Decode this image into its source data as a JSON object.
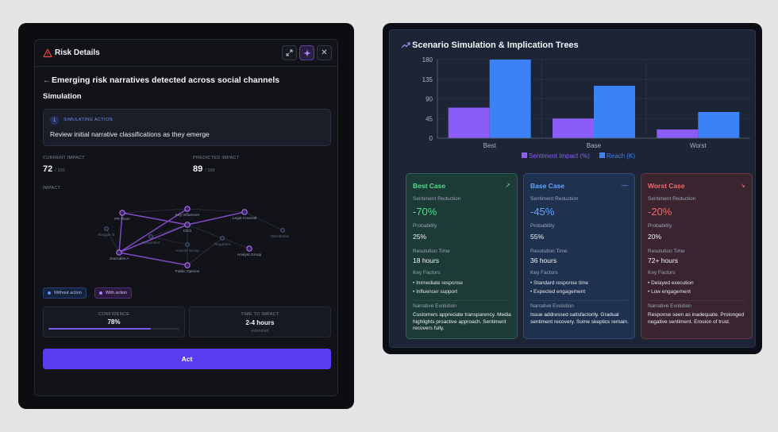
{
  "risk_panel": {
    "title": "Risk Details",
    "back_arrow": "←",
    "heading": "Emerging risk narratives detected across social channels",
    "section": "Simulation",
    "simulating": {
      "step": "1",
      "label": "SIMULATING ACTION",
      "text": "Review initial narrative classifications as they emerge"
    },
    "current_impact": {
      "label": "CURRENT IMPACT",
      "value": "72",
      "max": "/ 100"
    },
    "predicted_impact": {
      "label": "PREDICTED IMPACT",
      "value": "89",
      "max": "/ 100"
    },
    "impact_label": "IMPACT",
    "network_nodes": [
      "PR Team",
      "Key Influencer",
      "Legal Counsel",
      "Blogger B",
      "CEO",
      "Whistleblower",
      "Competitor",
      "Activist Group",
      "Regulator",
      "Journalist A",
      "Analyst Group",
      "Public Opinion"
    ],
    "legend": {
      "without": "Without action",
      "with": "With action"
    },
    "confidence": {
      "label": "CONFIDENCE",
      "value": "78%",
      "percent": 78
    },
    "time_to_impact": {
      "label": "TIME TO IMPACT",
      "value": "2-4 hours",
      "sub": "estimated"
    },
    "act_button": "Act"
  },
  "scenario_panel": {
    "title": "Scenario Simulation & Implication Trees",
    "chart_data": {
      "type": "bar",
      "categories": [
        "Best",
        "Base",
        "Worst"
      ],
      "series": [
        {
          "name": "Sentiment Impact (%)",
          "values": [
            70,
            45,
            20
          ],
          "color": "#8b5cf6"
        },
        {
          "name": "Reach (K)",
          "values": [
            180,
            120,
            60
          ],
          "color": "#3b82f6"
        }
      ],
      "yticks": [
        "0",
        "45",
        "90",
        "135",
        "180"
      ],
      "ylim": [
        0,
        180
      ],
      "grid": true,
      "legend": "bottom"
    },
    "scenarios": [
      {
        "key": "best",
        "title": "Best Case",
        "trend_icon": "↗",
        "sentiment_label": "Sentiment Reduction",
        "sentiment_value": "-70%",
        "probability_label": "Probability",
        "probability_value": "25%",
        "resolution_label": "Resolution Time",
        "resolution_value": "18 hours",
        "factors_label": "Key Factors",
        "factors": [
          "• Immediate response",
          "• Influencer support"
        ],
        "narrative_label": "Narrative Evolution",
        "narrative": "Customers appreciate transparency. Media highlights proactive approach. Sentiment recovers fully."
      },
      {
        "key": "base",
        "title": "Base Case",
        "trend_icon": "—",
        "sentiment_label": "Sentiment Reduction",
        "sentiment_value": "-45%",
        "probability_label": "Probability",
        "probability_value": "55%",
        "resolution_label": "Resolution Time",
        "resolution_value": "36 hours",
        "factors_label": "Key Factors",
        "factors": [
          "• Standard response time",
          "• Expected engagement"
        ],
        "narrative_label": "Narrative Evolution",
        "narrative": "Issue addressed satisfactorily. Gradual sentiment recovery. Some skeptics remain."
      },
      {
        "key": "worst",
        "title": "Worst Case",
        "trend_icon": "↘",
        "sentiment_label": "Sentiment Reduction",
        "sentiment_value": "-20%",
        "probability_label": "Probability",
        "probability_value": "20%",
        "resolution_label": "Resolution Time",
        "resolution_value": "72+ hours",
        "factors_label": "Key Factors",
        "factors": [
          "• Delayed execution",
          "• Low engagement"
        ],
        "narrative_label": "Narrative Evolution",
        "narrative": "Response seen as inadequate. Prolonged negative sentiment. Erosion of trust."
      }
    ]
  }
}
